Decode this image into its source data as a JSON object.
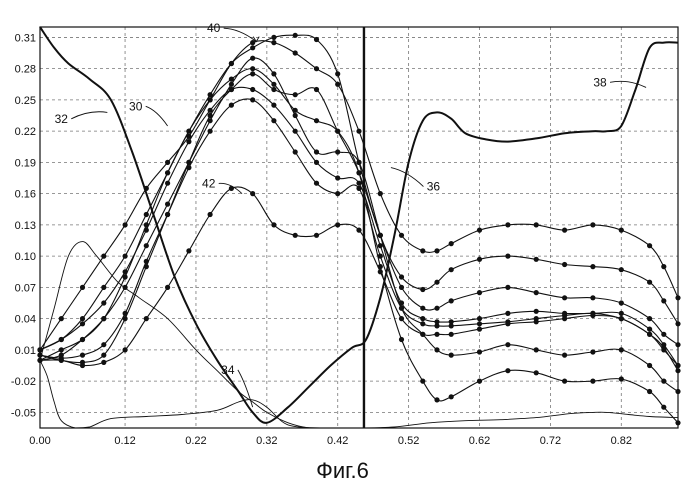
{
  "figure": {
    "caption": "Фиг.6"
  },
  "chart_data": {
    "type": "line",
    "title": "",
    "xlabel": "",
    "ylabel": "",
    "xlim": [
      0.0,
      0.9
    ],
    "ylim": [
      -0.065,
      0.32
    ],
    "x_ticks": [
      "0.00",
      "0.12",
      "0.22",
      "0.32",
      "0.42",
      "0.52",
      "0.62",
      "0.72",
      "0.82"
    ],
    "x_tick_values": [
      0.0,
      0.12,
      0.22,
      0.32,
      0.42,
      0.52,
      0.62,
      0.72,
      0.82
    ],
    "y_ticks": [
      "0.31",
      "0.28",
      "0.25",
      "0.22",
      "0.19",
      "0.16",
      "0.13",
      "0.10",
      "0.07",
      "0.04",
      "0.01",
      "-0.02",
      "-0.05"
    ],
    "y_tick_values": [
      0.31,
      0.28,
      0.25,
      0.22,
      0.19,
      0.16,
      0.13,
      0.1,
      0.07,
      0.04,
      0.01,
      -0.02,
      -0.05
    ],
    "grid": true,
    "grid_style": "dashed",
    "vertical_marker_x": 0.457,
    "annotations": [
      {
        "label": "40",
        "x": 0.245,
        "y": 0.315,
        "arrow_to": [
          0.305,
          0.306
        ],
        "curve": true
      },
      {
        "label": "30",
        "x": 0.135,
        "y": 0.24,
        "arrow_to": [
          0.18,
          0.225
        ],
        "curve": false
      },
      {
        "label": "32",
        "x": 0.03,
        "y": 0.228,
        "arrow_to": [
          0.095,
          0.238
        ],
        "curve": false
      },
      {
        "label": "38",
        "x": 0.79,
        "y": 0.263,
        "arrow_to": [
          0.855,
          0.262
        ],
        "curve": false
      },
      {
        "label": "36",
        "x": 0.555,
        "y": 0.163,
        "arrow_to": [
          0.495,
          0.185
        ],
        "curve": false
      },
      {
        "label": "42",
        "x": 0.238,
        "y": 0.166,
        "arrow_to": [
          0.285,
          0.16
        ],
        "curve": false
      },
      {
        "label": "34",
        "x": 0.265,
        "y": -0.013,
        "arrow_to": [
          0.3,
          -0.045
        ],
        "curve": false
      }
    ],
    "series": [
      {
        "style": "thick",
        "x": [
          0.0,
          0.02,
          0.04,
          0.07,
          0.1,
          0.13,
          0.16,
          0.19,
          0.22,
          0.25,
          0.28,
          0.3,
          0.32,
          0.35,
          0.38,
          0.41,
          0.44,
          0.46,
          0.48,
          0.5,
          0.52,
          0.54,
          0.56,
          0.58,
          0.6,
          0.63,
          0.66,
          0.7,
          0.74,
          0.78,
          0.8,
          0.82,
          0.84,
          0.86,
          0.88,
          0.9
        ],
        "y": [
          0.32,
          0.3,
          0.285,
          0.27,
          0.25,
          0.2,
          0.14,
          0.08,
          0.035,
          0.0,
          -0.03,
          -0.05,
          -0.06,
          -0.045,
          -0.025,
          -0.005,
          0.012,
          0.02,
          0.06,
          0.12,
          0.19,
          0.23,
          0.238,
          0.232,
          0.218,
          0.212,
          0.21,
          0.213,
          0.218,
          0.22,
          0.22,
          0.225,
          0.26,
          0.3,
          0.305,
          0.305
        ]
      },
      {
        "style": "thin",
        "x": [
          0.0,
          0.01,
          0.02,
          0.03,
          0.05,
          0.07,
          0.1,
          0.15,
          0.2,
          0.25,
          0.28,
          0.3,
          0.32,
          0.35,
          0.4,
          0.45,
          0.5,
          0.55,
          0.6,
          0.65,
          0.7,
          0.75,
          0.78,
          0.8,
          0.83,
          0.86,
          0.9
        ],
        "y": [
          0.0,
          -0.015,
          -0.04,
          -0.058,
          -0.065,
          -0.064,
          -0.056,
          -0.054,
          -0.052,
          -0.048,
          -0.04,
          -0.038,
          -0.045,
          -0.062,
          -0.065,
          -0.065,
          -0.064,
          -0.06,
          -0.058,
          -0.057,
          -0.055,
          -0.051,
          -0.05,
          -0.05,
          -0.052,
          -0.054,
          -0.055
        ]
      },
      {
        "style": "thin",
        "x": [
          0.0,
          0.02,
          0.04,
          0.06,
          0.08,
          0.11,
          0.14,
          0.18,
          0.22,
          0.25,
          0.28,
          0.3,
          0.32,
          0.35,
          0.38,
          0.41,
          0.44,
          0.47,
          0.5,
          0.52,
          0.55
        ],
        "y": [
          0.0,
          0.05,
          0.1,
          0.114,
          0.1,
          0.075,
          0.06,
          0.04,
          0.01,
          -0.01,
          -0.03,
          -0.04,
          -0.05,
          -0.06,
          -0.065,
          -0.065,
          -0.065,
          -0.065,
          -0.065,
          -0.065,
          -0.065
        ]
      },
      {
        "style": "dotted",
        "x": [
          0.0,
          0.03,
          0.06,
          0.09,
          0.12,
          0.15,
          0.18,
          0.21,
          0.24,
          0.27,
          0.3,
          0.33,
          0.36,
          0.39,
          0.42,
          0.45,
          0.48,
          0.51,
          0.54,
          0.56,
          0.58,
          0.62,
          0.66,
          0.7,
          0.74,
          0.78,
          0.82,
          0.86,
          0.88,
          0.9
        ],
        "y": [
          0.01,
          0.04,
          0.07,
          0.1,
          0.13,
          0.165,
          0.19,
          0.215,
          0.25,
          0.285,
          0.305,
          0.305,
          0.295,
          0.28,
          0.265,
          0.22,
          0.16,
          0.12,
          0.105,
          0.105,
          0.112,
          0.125,
          0.13,
          0.13,
          0.125,
          0.13,
          0.125,
          0.11,
          0.09,
          0.06
        ]
      },
      {
        "style": "dotted",
        "x": [
          0.0,
          0.03,
          0.06,
          0.09,
          0.12,
          0.15,
          0.18,
          0.21,
          0.24,
          0.27,
          0.3,
          0.33,
          0.36,
          0.39,
          0.42,
          0.45,
          0.48,
          0.51,
          0.54,
          0.56,
          0.58,
          0.62,
          0.66,
          0.7,
          0.74,
          0.78,
          0.82,
          0.86,
          0.88,
          0.9
        ],
        "y": [
          0.0,
          0.01,
          0.02,
          0.04,
          0.08,
          0.13,
          0.18,
          0.22,
          0.255,
          0.285,
          0.3,
          0.31,
          0.312,
          0.308,
          0.275,
          0.19,
          0.12,
          0.08,
          0.068,
          0.075,
          0.087,
          0.097,
          0.1,
          0.097,
          0.092,
          0.09,
          0.087,
          0.075,
          0.057,
          0.035
        ]
      },
      {
        "style": "dotted",
        "x": [
          0.0,
          0.03,
          0.06,
          0.09,
          0.12,
          0.15,
          0.18,
          0.21,
          0.24,
          0.27,
          0.3,
          0.33,
          0.36,
          0.39,
          0.42,
          0.45,
          0.48,
          0.51,
          0.54,
          0.56,
          0.58,
          0.62,
          0.66,
          0.7,
          0.74,
          0.78,
          0.82,
          0.86,
          0.88,
          0.9
        ],
        "y": [
          0.005,
          0.0,
          -0.002,
          0.005,
          0.04,
          0.09,
          0.14,
          0.19,
          0.235,
          0.26,
          0.275,
          0.26,
          0.255,
          0.26,
          0.22,
          0.18,
          0.12,
          0.07,
          0.05,
          0.05,
          0.057,
          0.065,
          0.07,
          0.065,
          0.06,
          0.06,
          0.055,
          0.04,
          0.025,
          0.015
        ]
      },
      {
        "style": "dotted",
        "x": [
          0.0,
          0.03,
          0.06,
          0.09,
          0.12,
          0.15,
          0.18,
          0.21,
          0.24,
          0.27,
          0.3,
          0.33,
          0.36,
          0.39,
          0.42,
          0.45,
          0.48,
          0.51,
          0.54,
          0.56,
          0.58,
          0.62,
          0.66,
          0.7,
          0.74,
          0.78,
          0.82,
          0.86,
          0.88,
          0.9
        ],
        "y": [
          0.01,
          0.02,
          0.035,
          0.055,
          0.085,
          0.125,
          0.17,
          0.21,
          0.24,
          0.26,
          0.26,
          0.245,
          0.22,
          0.19,
          0.175,
          0.17,
          0.11,
          0.055,
          0.04,
          0.037,
          0.037,
          0.04,
          0.045,
          0.047,
          0.045,
          0.045,
          0.045,
          0.03,
          0.015,
          -0.005
        ]
      },
      {
        "style": "dotted",
        "x": [
          0.0,
          0.03,
          0.06,
          0.09,
          0.12,
          0.15,
          0.18,
          0.21,
          0.24,
          0.27,
          0.3,
          0.33,
          0.36,
          0.39,
          0.42,
          0.45,
          0.48,
          0.51,
          0.54,
          0.56,
          0.58,
          0.62,
          0.66,
          0.7,
          0.74,
          0.78,
          0.82,
          0.86,
          0.88,
          0.9
        ],
        "y": [
          0.005,
          0.002,
          0.005,
          0.015,
          0.045,
          0.095,
          0.14,
          0.185,
          0.22,
          0.245,
          0.25,
          0.23,
          0.2,
          0.17,
          0.16,
          0.165,
          0.1,
          0.05,
          0.035,
          0.033,
          0.033,
          0.035,
          0.037,
          0.04,
          0.043,
          0.045,
          0.04,
          0.025,
          0.012,
          -0.01
        ]
      },
      {
        "style": "dotted",
        "x": [
          0.0,
          0.03,
          0.06,
          0.09,
          0.12,
          0.15,
          0.18,
          0.21,
          0.24,
          0.27,
          0.3,
          0.33,
          0.36,
          0.39,
          0.42,
          0.45,
          0.48,
          0.51,
          0.54,
          0.56,
          0.58,
          0.62,
          0.66,
          0.7,
          0.74,
          0.78,
          0.82,
          0.86,
          0.88,
          0.9
        ],
        "y": [
          0.0,
          0.0,
          -0.005,
          -0.002,
          0.01,
          0.04,
          0.07,
          0.105,
          0.14,
          0.165,
          0.16,
          0.13,
          0.12,
          0.12,
          0.13,
          0.125,
          0.085,
          0.04,
          0.025,
          0.025,
          0.025,
          0.03,
          0.035,
          0.037,
          0.04,
          0.043,
          0.04,
          0.025,
          0.01,
          -0.005
        ]
      },
      {
        "style": "dotted",
        "x": [
          0.0,
          0.03,
          0.06,
          0.09,
          0.12,
          0.15,
          0.18,
          0.21,
          0.24,
          0.27,
          0.3,
          0.33,
          0.36,
          0.39,
          0.42,
          0.45,
          0.48,
          0.51,
          0.54,
          0.56,
          0.58,
          0.62,
          0.66,
          0.7,
          0.74,
          0.78,
          0.82,
          0.86,
          0.88,
          0.9
        ],
        "y": [
          0.0,
          0.005,
          0.02,
          0.04,
          0.07,
          0.11,
          0.15,
          0.19,
          0.23,
          0.265,
          0.29,
          0.275,
          0.235,
          0.2,
          0.2,
          0.19,
          0.12,
          0.05,
          0.025,
          0.01,
          0.005,
          0.008,
          0.015,
          0.01,
          0.005,
          0.008,
          0.01,
          -0.005,
          -0.02,
          -0.03
        ]
      },
      {
        "style": "dotted",
        "x": [
          0.0,
          0.03,
          0.06,
          0.09,
          0.12,
          0.15,
          0.18,
          0.21,
          0.24,
          0.27,
          0.3,
          0.33,
          0.36,
          0.39,
          0.42,
          0.45,
          0.48,
          0.51,
          0.54,
          0.56,
          0.58,
          0.62,
          0.66,
          0.7,
          0.74,
          0.78,
          0.82,
          0.86,
          0.88,
          0.9
        ],
        "y": [
          0.01,
          0.02,
          0.04,
          0.07,
          0.1,
          0.14,
          0.18,
          0.22,
          0.25,
          0.27,
          0.28,
          0.265,
          0.24,
          0.23,
          0.22,
          0.18,
          0.09,
          0.02,
          -0.02,
          -0.038,
          -0.035,
          -0.02,
          -0.01,
          -0.012,
          -0.02,
          -0.02,
          -0.018,
          -0.03,
          -0.045,
          -0.06
        ]
      }
    ]
  }
}
